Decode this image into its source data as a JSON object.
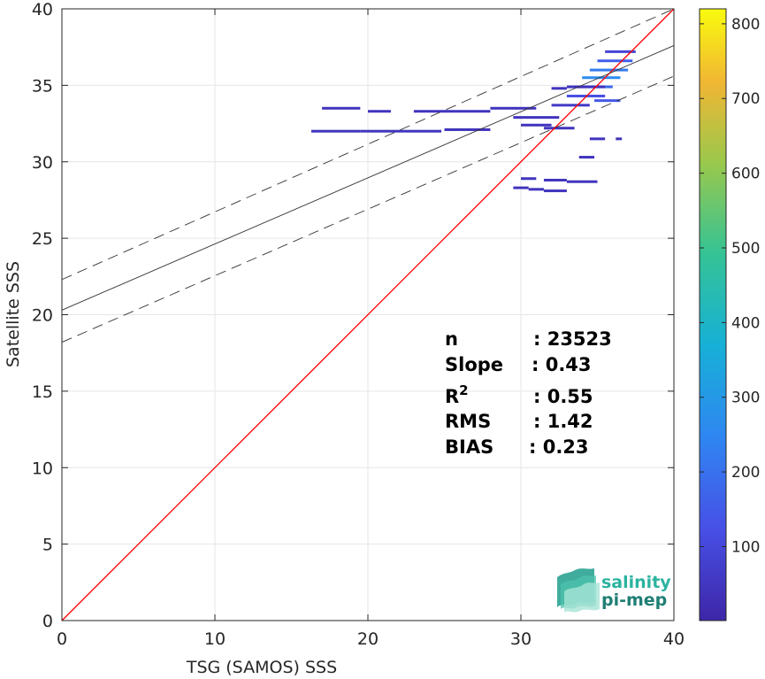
{
  "chart_data": {
    "type": "heatmap",
    "xlabel": "TSG (SAMOS) SSS",
    "ylabel": "Satellite SSS",
    "xlim": [
      0,
      40
    ],
    "ylim": [
      0,
      40
    ],
    "xticks": [
      "0",
      "10",
      "20",
      "30",
      "40"
    ],
    "yticks": [
      "0",
      "5",
      "10",
      "15",
      "20",
      "25",
      "30",
      "35",
      "40"
    ],
    "grid": true,
    "colorbar": {
      "range": [
        1,
        820
      ],
      "ticks": [
        "100",
        "200",
        "300",
        "400",
        "500",
        "600",
        "700",
        "800"
      ],
      "colormap": "parula"
    },
    "one_to_one_line": {
      "color": "#ff0000",
      "x": [
        0,
        40
      ],
      "y": [
        0,
        40
      ]
    },
    "regression_line": {
      "color": "#333333",
      "x": [
        0,
        40
      ],
      "y": [
        20.3,
        37.6
      ]
    },
    "confidence_bounds": [
      {
        "x": [
          0,
          40
        ],
        "y": [
          22.3,
          40.0
        ],
        "style": "dashed"
      },
      {
        "x": [
          0,
          40
        ],
        "y": [
          18.2,
          35.6
        ],
        "style": "dashed"
      }
    ],
    "density_segments": [
      {
        "x0": 16.3,
        "x1": 19.5,
        "y": 32.0,
        "count": 30
      },
      {
        "x0": 19.5,
        "x1": 24.8,
        "y": 32.0,
        "count": 45
      },
      {
        "x0": 25.0,
        "x1": 28.0,
        "y": 32.1,
        "count": 20
      },
      {
        "x0": 17.0,
        "x1": 19.5,
        "y": 33.5,
        "count": 10
      },
      {
        "x0": 20.0,
        "x1": 21.5,
        "y": 33.3,
        "count": 6
      },
      {
        "x0": 23.0,
        "x1": 28.0,
        "y": 33.3,
        "count": 12
      },
      {
        "x0": 28.0,
        "x1": 31.0,
        "y": 33.5,
        "count": 35
      },
      {
        "x0": 29.5,
        "x1": 32.5,
        "y": 32.9,
        "count": 25
      },
      {
        "x0": 30.0,
        "x1": 32.0,
        "y": 32.4,
        "count": 15
      },
      {
        "x0": 31.5,
        "x1": 33.5,
        "y": 32.2,
        "count": 10
      },
      {
        "x0": 32.0,
        "x1": 34.5,
        "y": 33.7,
        "count": 60
      },
      {
        "x0": 33.0,
        "x1": 35.5,
        "y": 34.3,
        "count": 120
      },
      {
        "x0": 33.5,
        "x1": 36.0,
        "y": 34.9,
        "count": 180
      },
      {
        "x0": 34.0,
        "x1": 36.5,
        "y": 35.5,
        "count": 260
      },
      {
        "x0": 34.5,
        "x1": 37.0,
        "y": 36.0,
        "count": 220
      },
      {
        "x0": 35.0,
        "x1": 37.3,
        "y": 36.6,
        "count": 160
      },
      {
        "x0": 35.5,
        "x1": 37.5,
        "y": 37.2,
        "count": 90
      },
      {
        "x0": 34.8,
        "x1": 36.5,
        "y": 34.0,
        "count": 140
      },
      {
        "x0": 30.0,
        "x1": 31.0,
        "y": 28.9,
        "count": 4
      },
      {
        "x0": 31.5,
        "x1": 33.0,
        "y": 28.8,
        "count": 5
      },
      {
        "x0": 33.0,
        "x1": 35.0,
        "y": 28.7,
        "count": 6
      },
      {
        "x0": 29.5,
        "x1": 30.5,
        "y": 28.3,
        "count": 3
      },
      {
        "x0": 30.5,
        "x1": 31.5,
        "y": 28.2,
        "count": 4
      },
      {
        "x0": 31.5,
        "x1": 33.0,
        "y": 28.1,
        "count": 6
      },
      {
        "x0": 33.8,
        "x1": 34.8,
        "y": 30.3,
        "count": 4
      },
      {
        "x0": 34.5,
        "x1": 35.5,
        "y": 31.5,
        "count": 4
      },
      {
        "x0": 36.2,
        "x1": 36.6,
        "y": 31.5,
        "count": 3
      },
      {
        "x0": 33.0,
        "x1": 35.5,
        "y": 34.9,
        "count": 30
      },
      {
        "x0": 32.0,
        "x1": 33.0,
        "y": 34.8,
        "count": 8
      }
    ],
    "stats": [
      {
        "label": "n",
        "value": ": 23523"
      },
      {
        "label": "Slope",
        "value": ": 0.43"
      },
      {
        "label": "R",
        "sup": "2",
        "value": ": 0.55"
      },
      {
        "label": "RMS",
        "value": ": 1.42"
      },
      {
        "label": "BIAS",
        "value": ": 0.23"
      }
    ]
  },
  "logo": {
    "line1": "salinity",
    "line2": "pi-mep",
    "color1": "#2bb3a0",
    "color2": "#1f7f74"
  }
}
